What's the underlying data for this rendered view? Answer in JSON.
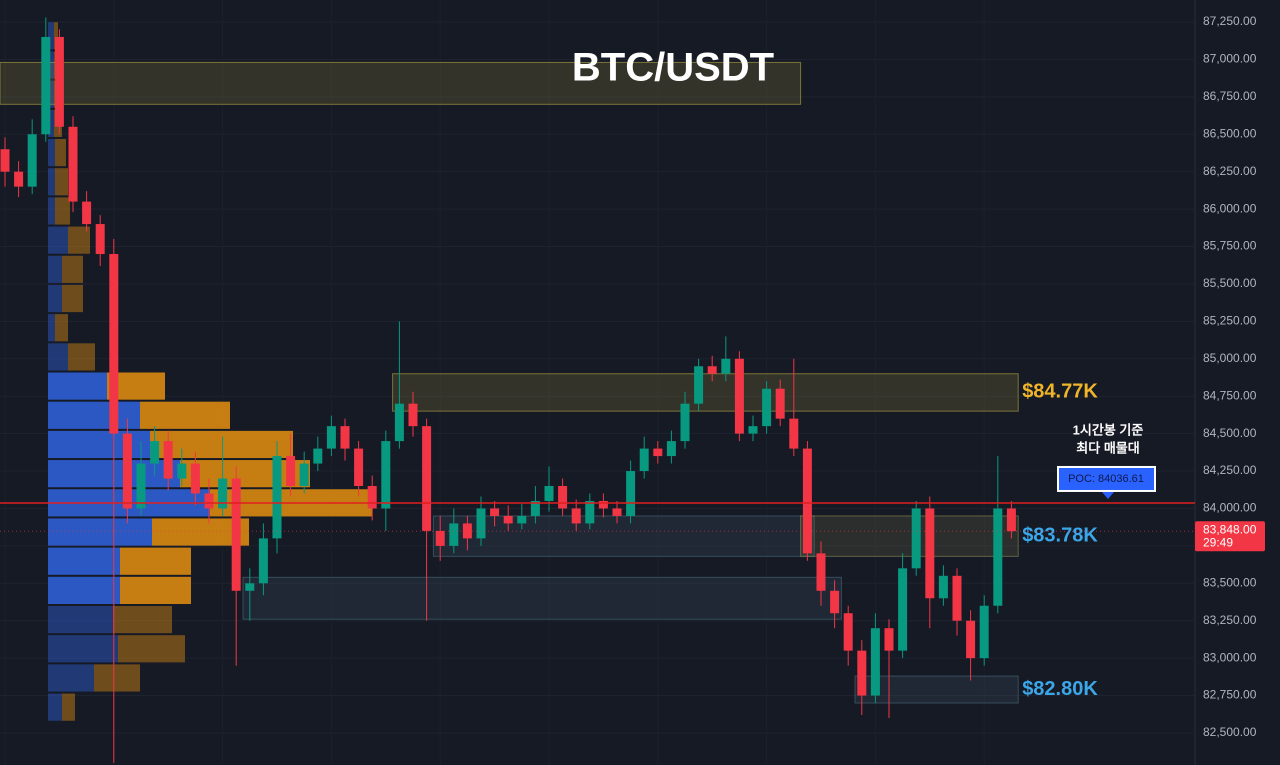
{
  "chart_data": {
    "type": "candlestick",
    "title": "BTC/USDT",
    "ylim": [
      82286,
      87397
    ],
    "yticks": [
      {
        "value": 87250,
        "label": "87,250.00"
      },
      {
        "value": 87000,
        "label": "87,000.00"
      },
      {
        "value": 86750,
        "label": "86,750.00"
      },
      {
        "value": 86500,
        "label": "86,500.00"
      },
      {
        "value": 86250,
        "label": "86,250.00"
      },
      {
        "value": 86000,
        "label": "86,000.00"
      },
      {
        "value": 85750,
        "label": "85,750.00"
      },
      {
        "value": 85500,
        "label": "85,500.00"
      },
      {
        "value": 85250,
        "label": "85,250.00"
      },
      {
        "value": 85000,
        "label": "85,000.00"
      },
      {
        "value": 84750,
        "label": "84,750.00"
      },
      {
        "value": 84500,
        "label": "84,500.00"
      },
      {
        "value": 84250,
        "label": "84,250.00"
      },
      {
        "value": 84000,
        "label": "84,000.00"
      },
      {
        "value": 83750,
        "label": "83,750.00"
      },
      {
        "value": 83500,
        "label": "83,500.00"
      },
      {
        "value": 83250,
        "label": "83,250.00"
      },
      {
        "value": 83000,
        "label": "83,000.00"
      },
      {
        "value": 82750,
        "label": "82,750.00"
      },
      {
        "value": 82500,
        "label": "82,500.00"
      }
    ],
    "grid": true,
    "up_color": "#089981",
    "down_color": "#f23645",
    "open": [
      86400,
      86250,
      86150,
      86500,
      87150,
      86550,
      86050,
      85900,
      85700,
      84500,
      84000,
      84300,
      84450,
      84200,
      84300,
      84100,
      84000,
      84200,
      83450,
      83500,
      83800,
      84350,
      84150,
      84300,
      84400,
      84550,
      84400,
      84150,
      84000,
      84450,
      84700,
      84550,
      83850,
      83750,
      83900,
      83800,
      84000,
      83950,
      83900,
      83950,
      84050,
      84150,
      84000,
      83900,
      84050,
      84000,
      83950,
      84250,
      84400,
      84350,
      84450,
      84700,
      84950,
      84900,
      85000,
      84500,
      84550,
      84800,
      84600,
      84400,
      83700,
      83450,
      83300,
      83050,
      82750,
      83200,
      83050,
      83600,
      84000,
      83400,
      83550,
      83250,
      83000,
      83350,
      84000
    ],
    "high": [
      86480,
      86320,
      86600,
      87280,
      87200,
      86620,
      86120,
      85960,
      85800,
      84600,
      84450,
      84550,
      84520,
      84400,
      84380,
      84200,
      84480,
      84280,
      83600,
      83900,
      84450,
      84500,
      84380,
      84480,
      84620,
      84600,
      84450,
      84220,
      84520,
      85250,
      84780,
      84600,
      83950,
      84000,
      83950,
      84080,
      84050,
      84020,
      84030,
      84150,
      84280,
      84200,
      84060,
      84100,
      84100,
      84050,
      84320,
      84480,
      84450,
      84520,
      84780,
      85000,
      85020,
      85150,
      85050,
      84620,
      84850,
      84860,
      85000,
      84450,
      83780,
      83520,
      83350,
      83120,
      83300,
      83260,
      83700,
      84050,
      84080,
      83620,
      83600,
      83320,
      83420,
      84350,
      84050
    ],
    "low": [
      86150,
      86080,
      86100,
      86450,
      86500,
      85980,
      85850,
      85620,
      82300,
      83900,
      83950,
      84220,
      84120,
      84150,
      84020,
      83900,
      83950,
      82950,
      83250,
      83420,
      83700,
      84080,
      84100,
      84250,
      84350,
      84320,
      84080,
      83920,
      83850,
      84400,
      84480,
      83250,
      83650,
      83700,
      83720,
      83750,
      83880,
      83850,
      83860,
      83900,
      83980,
      83950,
      83850,
      83860,
      83940,
      83900,
      83900,
      84200,
      84300,
      84300,
      84400,
      84650,
      84850,
      84850,
      84450,
      84450,
      84500,
      84550,
      84350,
      83650,
      83350,
      83200,
      82950,
      82620,
      82700,
      82600,
      83000,
      83550,
      83200,
      83350,
      83150,
      82850,
      82950,
      83300,
      83800
    ],
    "close": [
      86250,
      86150,
      86500,
      87150,
      86550,
      86050,
      85900,
      85700,
      84500,
      84000,
      84300,
      84450,
      84200,
      84300,
      84100,
      84000,
      84200,
      83450,
      83500,
      83800,
      84350,
      84150,
      84300,
      84400,
      84550,
      84400,
      84150,
      84000,
      84450,
      84700,
      84550,
      83850,
      83750,
      83900,
      83800,
      84000,
      83950,
      83900,
      83950,
      84050,
      84150,
      84000,
      83900,
      84050,
      84000,
      83950,
      84250,
      84400,
      84350,
      84450,
      84700,
      84950,
      84900,
      85000,
      84500,
      84550,
      84800,
      84600,
      84400,
      83700,
      83450,
      83300,
      83050,
      82750,
      83200,
      83050,
      83600,
      84000,
      83400,
      83550,
      83250,
      83000,
      83350,
      84000,
      83848
    ],
    "volume_profile": {
      "bins": [
        82575,
        82770,
        82965,
        83160,
        83355,
        83550,
        83745,
        83940,
        84135,
        84330,
        84525,
        84720,
        84915,
        85110,
        85305,
        85500,
        85695,
        85890,
        86085,
        86280,
        86475,
        86670,
        86865,
        87060,
        87255
      ],
      "buy": [
        14,
        46,
        70,
        65,
        72,
        72,
        104,
        162,
        132,
        102,
        92,
        59,
        20,
        7,
        14,
        14,
        20,
        7,
        7,
        7,
        6,
        6,
        6,
        6
      ],
      "sell": [
        13,
        46,
        67,
        59,
        71,
        71,
        97,
        162,
        130,
        143,
        90,
        58,
        27,
        13,
        21,
        21,
        22,
        15,
        13,
        11,
        8,
        6,
        6,
        4
      ],
      "buy_color": "#2f5fd6",
      "sell_color": "#d98a12",
      "value_area": [
        83355,
        84915
      ]
    },
    "zones": [
      {
        "low": 86700,
        "high": 86980,
        "start": 0,
        "end": 58,
        "color": "#b5a642"
      },
      {
        "low": 84650,
        "high": 84900,
        "start": 29,
        "end": 74,
        "color": "#b5a642",
        "label": "$84.77K",
        "label_color": "#f0b429"
      },
      {
        "low": 83680,
        "high": 83950,
        "start": 32,
        "end": 59,
        "color": "#4a6a7a"
      },
      {
        "low": 83680,
        "high": 83950,
        "start": 59,
        "end": 74,
        "color": "#8a8a55",
        "label": "$83.78K",
        "label_color": "#3ba6e8"
      },
      {
        "low": 83260,
        "high": 83540,
        "start": 18,
        "end": 61,
        "color": "#4a6a7a"
      },
      {
        "low": 82700,
        "high": 82880,
        "start": 63,
        "end": 74,
        "color": "#4a6a7a",
        "label": "$82.80K",
        "label_color": "#3ba6e8"
      }
    ],
    "poc": {
      "value": 84036.61,
      "label": "POC: 84036.61"
    },
    "annotation": [
      "1시간봉 기준",
      "최다 매물대"
    ],
    "last_price": {
      "value": 83848,
      "label": "83,848.00"
    },
    "countdown": "29:49"
  }
}
